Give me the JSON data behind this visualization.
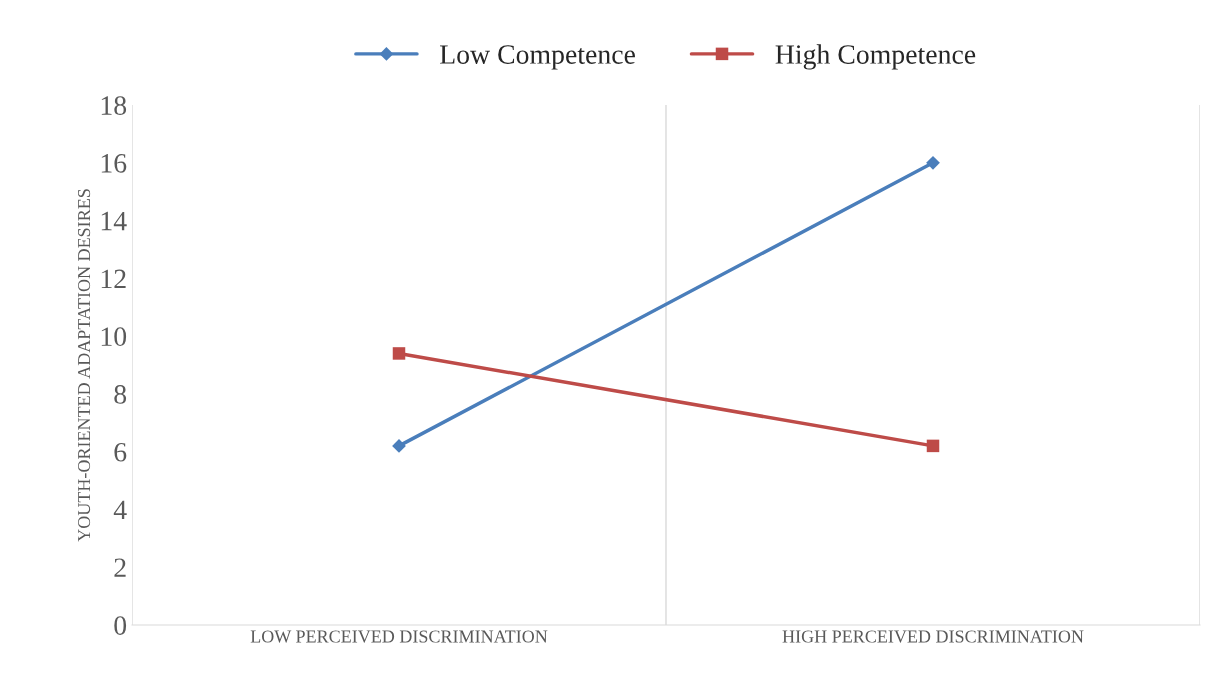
{
  "chart_data": {
    "type": "line",
    "ylabel": "YOUTH-ORIENTED ADAPTATION DESIRES",
    "categories": [
      "LOW PERCEIVED DISCRIMINATION",
      "HIGH PERCEIVED DISCRIMINATION"
    ],
    "series": [
      {
        "name": "Low Competence",
        "color": "#4a7ebb",
        "marker": "diamond",
        "values": [
          6.2,
          16.0
        ]
      },
      {
        "name": "High Competence",
        "color": "#be4b48",
        "marker": "square",
        "values": [
          9.4,
          6.2
        ]
      }
    ],
    "ylim": [
      0,
      18
    ],
    "yticks": [
      0,
      2,
      4,
      6,
      8,
      10,
      12,
      14,
      16,
      18
    ],
    "grid": "x",
    "legend": "top",
    "line_style": "solid"
  }
}
